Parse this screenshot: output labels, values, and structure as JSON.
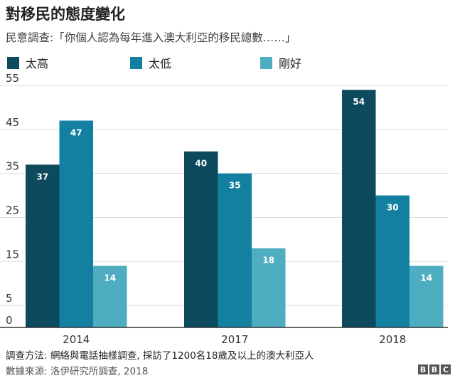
{
  "title": "對移民的態度變化",
  "subtitle": "民意調查:「你個人認為每年進入澳大利亞的移民總數……」",
  "legend": [
    {
      "label": "太高",
      "color": "#0d4a5e"
    },
    {
      "label": "太低",
      "color": "#1380a1"
    },
    {
      "label": "剛好",
      "color": "#4eadc0"
    }
  ],
  "chart_data": {
    "type": "bar",
    "categories": [
      "2014",
      "2017",
      "2018"
    ],
    "series": [
      {
        "name": "太高",
        "values": [
          37,
          40,
          54
        ],
        "color": "#0d4a5e"
      },
      {
        "name": "太低",
        "values": [
          47,
          35,
          30
        ],
        "color": "#1380a1"
      },
      {
        "name": "剛好",
        "values": [
          14,
          18,
          14
        ],
        "color": "#4eadc0"
      }
    ],
    "yticks": [
      0,
      5,
      15,
      25,
      35,
      45,
      55
    ],
    "ylim": [
      0,
      55
    ],
    "grid": true,
    "legend_position": "top"
  },
  "footer": {
    "note": "調查方法: 網絡與電話抽樣調查, 採訪了1200名18歲及以上的澳大利亞人",
    "source": "數據來源: 洛伊研究所調查, 2018"
  },
  "logo": [
    "B",
    "B",
    "C"
  ]
}
